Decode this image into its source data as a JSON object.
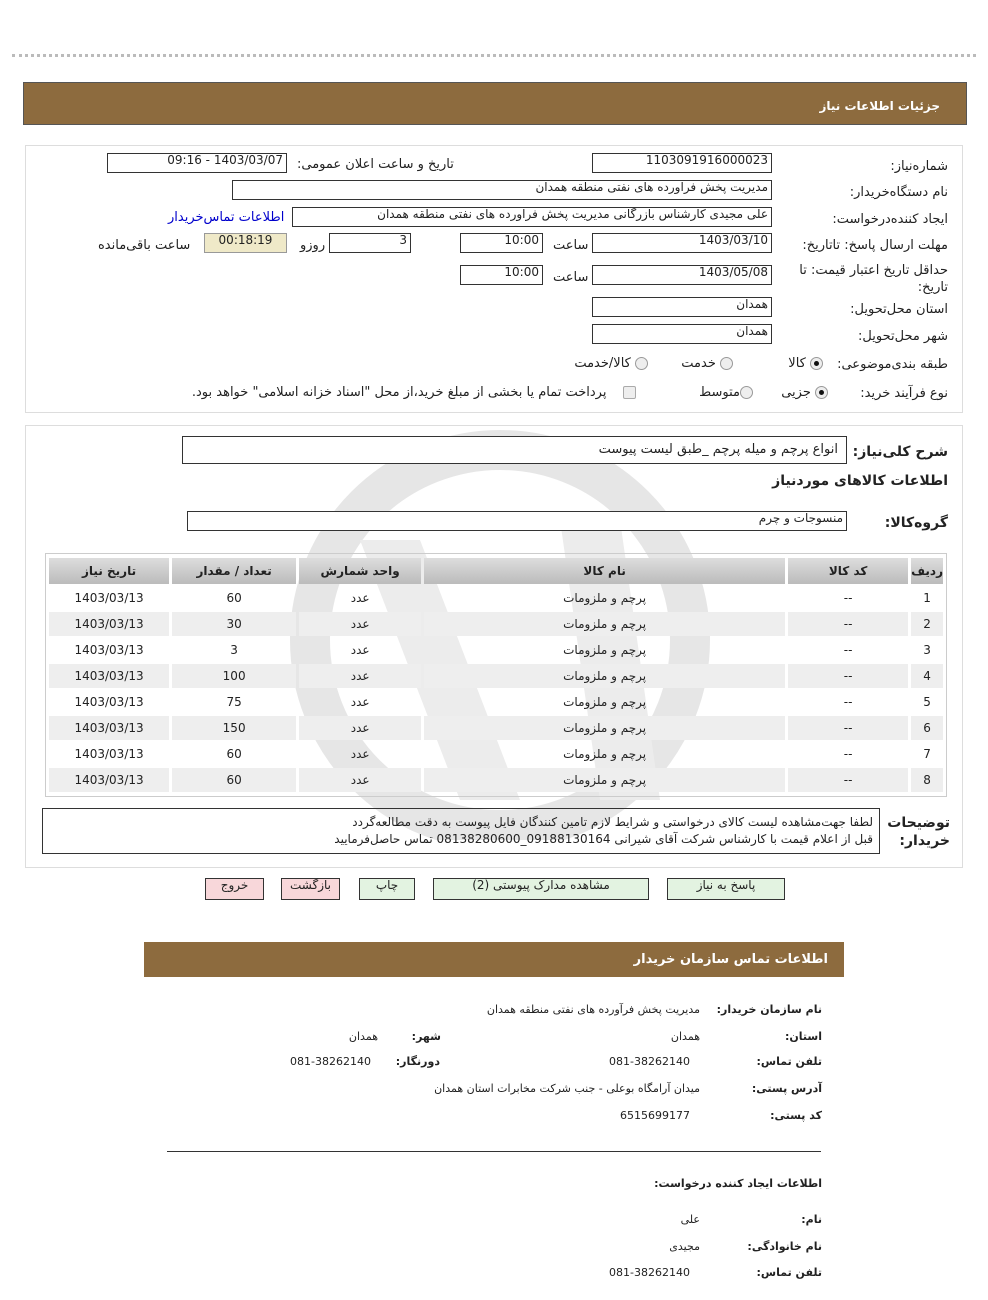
{
  "header": {
    "title": "جزئیات اطلاعات نیاز"
  },
  "form": {
    "need_number_label": "شماره‌نیاز:",
    "need_number": "1103091916000023",
    "announce_label": "تاریخ و ساعت اعلان عمومی:",
    "announce_value": "1403/03/07 - 09:16",
    "buyer_org_label": "نام دستگاه‌خریدار:",
    "buyer_org": "مدیریت پخش فراورده های نفتی منطقه همدان",
    "creator_label": "ایجاد کننده‌درخواست:",
    "creator": "علی مجیدی کارشناس بازرگانی مدیریت پخش فراورده های نفتی منطقه همدان",
    "contact_link": "اطلاعات تماس‌خریدار",
    "deadline_label": "مهلت ارسال پاسخ: تاتاریخ:",
    "deadline_date": "1403/03/10",
    "time_label": "ساعت",
    "deadline_time": "10:00",
    "days": "3",
    "days_label": "روزو",
    "remaining": "00:18:19",
    "remaining_label": "ساعت باقی‌مانده",
    "validity_label": "حداقل تاریخ اعتبار قیمت: تا تاریخ:",
    "validity_date": "1403/05/08",
    "validity_time": "10:00",
    "province_label": "استان محل‌تحویل:",
    "province": "همدان",
    "city_label": "شهر محل‌تحویل:",
    "city": "همدان",
    "category_label": "طبقه بندی‌موضوعی:",
    "category_options": [
      "کالا",
      "خدمت",
      "کالا/خدمت"
    ],
    "category_selected": "کالا",
    "process_label": "نوع فرآیند خرید:",
    "process_options": [
      "جزیی",
      "متوسط"
    ],
    "process_selected": "جزیی",
    "payment_note": "پرداخت تمام یا بخشی از مبلغ خرید،از محل \"اسناد خزانه اسلامی\" خواهد بود."
  },
  "needs": {
    "summary_label": "شرح کلی‌نیاز:",
    "summary": "انواع پرچم  و میله پرچم _طبق لیست پیوست",
    "goods_title": "اطلاعات کالاهای مورد‌نیاز",
    "group_label": "گروه‌کالا:",
    "group": "منسوجات و چرم",
    "columns": [
      "ردیف",
      "کد کالا",
      "نام کالا",
      "واحد شمارش",
      "تعداد / مقدار",
      "تاریخ نیاز"
    ],
    "rows": [
      [
        "1",
        "--",
        "پرچم و ملزومات",
        "عدد",
        "60",
        "1403/03/13"
      ],
      [
        "2",
        "--",
        "پرچم و ملزومات",
        "عدد",
        "30",
        "1403/03/13"
      ],
      [
        "3",
        "--",
        "پرچم و ملزومات",
        "عدد",
        "3",
        "1403/03/13"
      ],
      [
        "4",
        "--",
        "پرچم و ملزومات",
        "عدد",
        "100",
        "1403/03/13"
      ],
      [
        "5",
        "--",
        "پرچم و ملزومات",
        "عدد",
        "75",
        "1403/03/13"
      ],
      [
        "6",
        "--",
        "پرچم و ملزومات",
        "عدد",
        "150",
        "1403/03/13"
      ],
      [
        "7",
        "--",
        "پرچم و ملزومات",
        "عدد",
        "60",
        "1403/03/13"
      ],
      [
        "8",
        "--",
        "پرچم و ملزومات",
        "عدد",
        "60",
        "1403/03/13"
      ]
    ],
    "notes_label": "توضیحات خریدار:",
    "notes_line1": "لطفا جهت‌مشاهده لیست کالای درخواستی و شرایط لازم تامین کنندگان فایل پیوست به دقت مطالعه‌گردد",
    "notes_line2": "قبل از اعلام قیمت با کارشناس شرکت آقای شیرانی 09188130164_08138280600 تماس حاصل‌فرمایید"
  },
  "buttons": {
    "reply": "پاسخ به نیاز",
    "attachments": "مشاهده مدارک پیوستی (2)",
    "print": "چاپ",
    "back": "بازگشت",
    "exit": "خروج"
  },
  "contact": {
    "title": "اطلاعات تماس سازمان خریدار",
    "org_label": "نام سازمان خریدار:",
    "org": "مدیریت پخش فرآورده های نفتی منطقه همدان",
    "province_label": "استان:",
    "province": "همدان",
    "city_label": "شهر:",
    "city": "همدان",
    "phone_label": "تلفن تماس:",
    "phone": "081-38262140",
    "fax_label": "دورنگار:",
    "fax": "081-38262140",
    "address_label": "آدرس پستی:",
    "address": "میدان آرامگاه بوعلی - جنب شرکت مخابرات استان همدان",
    "postal_label": "کد پستی:",
    "postal": "6515699177",
    "creator_title": "اطلاعات ایجاد کننده درخواست:",
    "name_label": "نام:",
    "name": "علی",
    "family_label": "نام خانوادگی:",
    "family": "مجیدی",
    "creator_phone_label": "تلفن تماس:",
    "creator_phone": "081-38262140"
  },
  "colors": {
    "header_bar": "#8d6b3e",
    "timer_bg": "#efe9c8",
    "green_button": "#e3f3e1",
    "pink_button": "#f8d7da",
    "link": "#0000cc"
  }
}
